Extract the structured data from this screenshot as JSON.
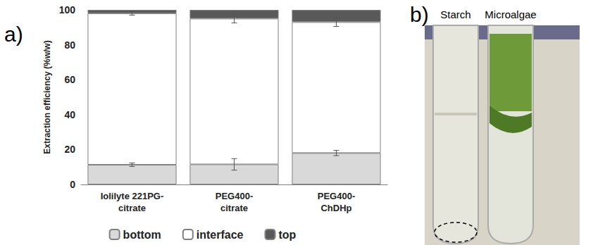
{
  "panel_labels": [
    "a)",
    "b)"
  ],
  "chart_data": {
    "type": "bar",
    "stacked": true,
    "grid": false,
    "legend": "bottom",
    "y_label": "Extraction efficiency (%w/w)",
    "categories": [
      "Iolilyte 221PG-citrate",
      "PEG400-citrate",
      "PEG400-ChDHp"
    ],
    "ylim": [
      0,
      100
    ],
    "yticks": [
      0,
      20,
      40,
      60,
      80,
      100
    ],
    "series": [
      {
        "name": "bottom",
        "color": "#d9d9d9",
        "values": [
          11.3,
          11.5,
          18
        ],
        "errors": [
          1,
          3.3,
          1.5
        ]
      },
      {
        "name": "interface",
        "color": "#ffffff",
        "values": [
          86.7,
          83.5,
          75
        ],
        "errors": [
          1,
          2.5,
          2.5
        ]
      },
      {
        "name": "top",
        "color": "#595959",
        "values": [
          2,
          5,
          7
        ]
      }
    ]
  },
  "photo": {
    "labels": [
      "Starch",
      "Microalgae"
    ]
  }
}
